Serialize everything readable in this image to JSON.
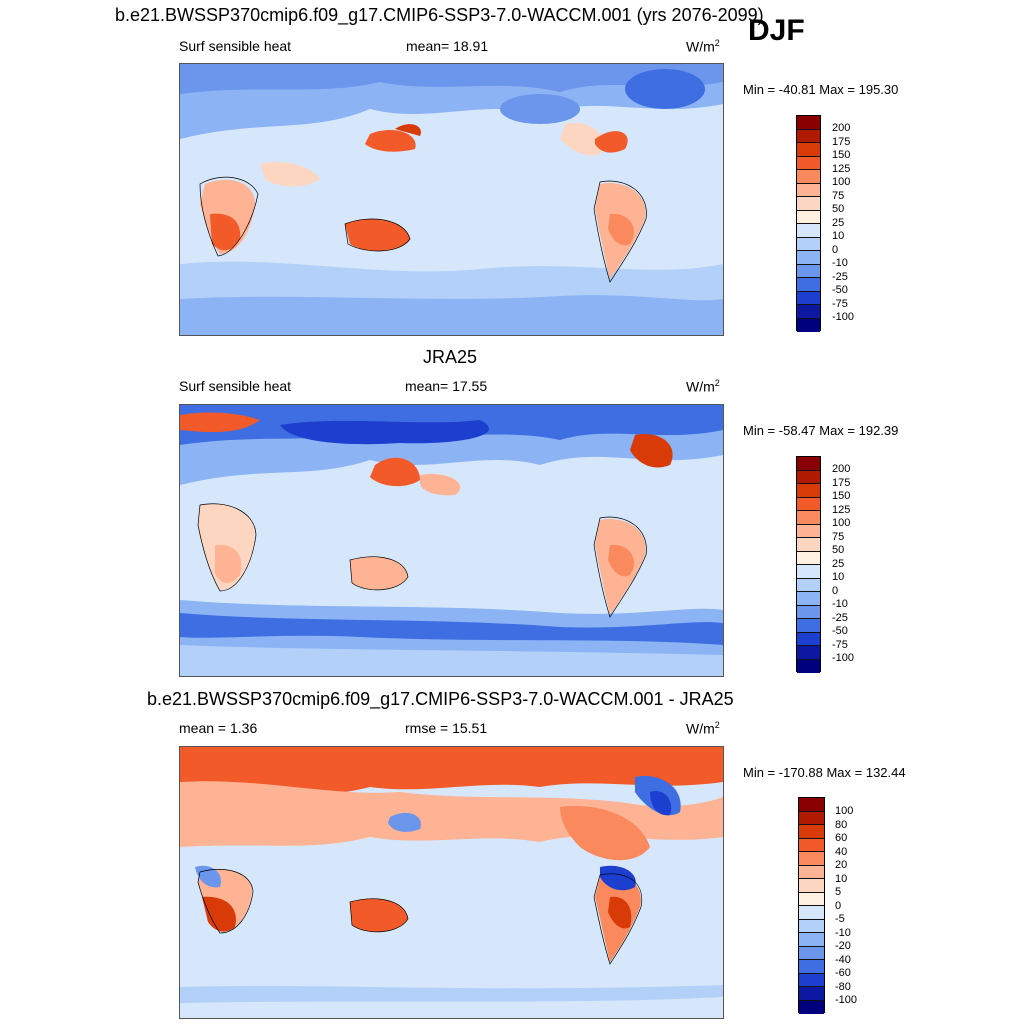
{
  "main_title": "b.e21.BWSSP370cmip6.f09_g17.CMIP6-SSP3-7.0-WACCM.001 (yrs 2076-2099)",
  "season": "DJF",
  "unit_base": "W/m",
  "unit_exp": "2",
  "panels": [
    {
      "title": "",
      "left_text": "Surf sensible heat",
      "center_text": "mean=  18.91",
      "minmax": "Min = -40.81 Max = 195.30",
      "colorbar": {
        "labels": [
          "200",
          "175",
          "150",
          "125",
          "100",
          "75",
          "50",
          "25",
          "10",
          "0",
          "-10",
          "-25",
          "-50",
          "-75",
          "-100"
        ],
        "colors": [
          "#8a0000",
          "#b01b00",
          "#d83a08",
          "#f25a2a",
          "#fa8a5e",
          "#fdb394",
          "#fdd6c1",
          "#fff0e2",
          "#d6e7fb",
          "#b3d0f8",
          "#8cb4f4",
          "#6b96ec",
          "#3f6ee2",
          "#1c3fd0",
          "#0c17a2",
          "#00007f"
        ]
      }
    },
    {
      "title": "JRA25",
      "left_text": "Surf sensible heat",
      "center_text": "mean=  17.55",
      "minmax": "Min = -58.47 Max = 192.39",
      "colorbar": {
        "labels": [
          "200",
          "175",
          "150",
          "125",
          "100",
          "75",
          "50",
          "25",
          "10",
          "0",
          "-10",
          "-25",
          "-50",
          "-75",
          "-100"
        ],
        "colors": [
          "#8a0000",
          "#b01b00",
          "#d83a08",
          "#f25a2a",
          "#fa8a5e",
          "#fdb394",
          "#fdd6c1",
          "#fff0e2",
          "#d6e7fb",
          "#b3d0f8",
          "#8cb4f4",
          "#6b96ec",
          "#3f6ee2",
          "#1c3fd0",
          "#0c17a2",
          "#00007f"
        ]
      }
    },
    {
      "title": "b.e21.BWSSP370cmip6.f09_g17.CMIP6-SSP3-7.0-WACCM.001 - JRA25",
      "left_text": "mean =   1.36",
      "center_text": "rmse =  15.51",
      "minmax": "Min = -170.88 Max = 132.44",
      "colorbar": {
        "labels": [
          "100",
          "80",
          "60",
          "40",
          "20",
          "10",
          "5",
          "0",
          "-5",
          "-10",
          "-20",
          "-40",
          "-60",
          "-80",
          "-100"
        ],
        "colors": [
          "#8a0000",
          "#b01b00",
          "#d83a08",
          "#f25a2a",
          "#fa8a5e",
          "#fdb394",
          "#fdd6c1",
          "#fff0e2",
          "#d6e7fb",
          "#b3d0f8",
          "#8cb4f4",
          "#6b96ec",
          "#3f6ee2",
          "#1c3fd0",
          "#0c17a2",
          "#00007f"
        ]
      }
    }
  ]
}
